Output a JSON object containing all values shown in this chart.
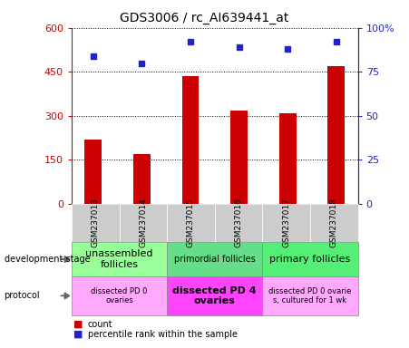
{
  "title": "GDS3006 / rc_AI639441_at",
  "samples": [
    "GSM237013",
    "GSM237014",
    "GSM237015",
    "GSM237016",
    "GSM237017",
    "GSM237018"
  ],
  "counts": [
    220,
    168,
    435,
    318,
    308,
    468
  ],
  "percentiles": [
    84,
    80,
    92,
    89,
    88,
    92
  ],
  "bar_color": "#cc0000",
  "dot_color": "#2222cc",
  "ylim_left": [
    0,
    600
  ],
  "ylim_right": [
    0,
    100
  ],
  "yticks_left": [
    0,
    150,
    300,
    450,
    600
  ],
  "yticks_right": [
    0,
    25,
    50,
    75,
    100
  ],
  "ytick_labels_left": [
    "0",
    "150",
    "300",
    "450",
    "600"
  ],
  "ytick_labels_right": [
    "0",
    "25",
    "50",
    "75",
    "100%"
  ],
  "development_stages": [
    {
      "label": "unassembled\nfollicles",
      "cols": [
        0,
        1
      ],
      "color": "#99ff99",
      "fontsize": 8,
      "fontweight": "normal"
    },
    {
      "label": "primordial follicles",
      "cols": [
        2,
        3
      ],
      "color": "#66dd88",
      "fontsize": 7,
      "fontweight": "normal"
    },
    {
      "label": "primary follicles",
      "cols": [
        4,
        5
      ],
      "color": "#55ee77",
      "fontsize": 8,
      "fontweight": "normal"
    }
  ],
  "protocols": [
    {
      "label": "dissected PD 0\novaries",
      "cols": [
        0,
        1
      ],
      "color": "#ffaaff",
      "fontsize": 6,
      "fontweight": "normal"
    },
    {
      "label": "dissected PD 4\novaries",
      "cols": [
        2,
        3
      ],
      "color": "#ff44ff",
      "fontsize": 8,
      "fontweight": "bold"
    },
    {
      "label": "dissected PD 0 ovarie\ns, cultured for 1 wk",
      "cols": [
        4,
        5
      ],
      "color": "#ffaaff",
      "fontsize": 6,
      "fontweight": "normal"
    }
  ],
  "tick_color_left": "#cc0000",
  "tick_color_right": "#2222cc",
  "sample_bg_color": "#cccccc",
  "grid_color": "#000000"
}
